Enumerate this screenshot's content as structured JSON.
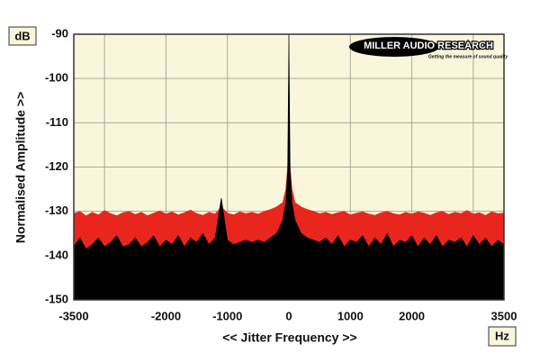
{
  "chart_data": {
    "type": "area",
    "y_unit": "dB",
    "x_unit": "Hz",
    "ylabel": "Normalised Amplitude >>",
    "xlabel": "<< Jitter Frequency >>",
    "logo": "MILLER AUDIO RESEARCH",
    "tagline": "Getting the measure of sound quality",
    "xlim": [
      -3500,
      3500
    ],
    "ylim": [
      -150,
      -90
    ],
    "xticks": [
      -3500,
      -2000,
      -1000,
      0,
      1000,
      2000,
      3500
    ],
    "xgrid_extra": [
      -3000,
      3000
    ],
    "yticks": [
      -150,
      -140,
      -130,
      -120,
      -110,
      -100,
      -90
    ],
    "grid": true,
    "x": [
      -3500,
      -3400,
      -3300,
      -3200,
      -3100,
      -3000,
      -2900,
      -2800,
      -2700,
      -2600,
      -2500,
      -2400,
      -2300,
      -2200,
      -2100,
      -2000,
      -1900,
      -1800,
      -1700,
      -1600,
      -1500,
      -1400,
      -1300,
      -1200,
      -1100,
      -1000,
      -900,
      -800,
      -700,
      -600,
      -500,
      -400,
      -300,
      -200,
      -100,
      -50,
      -20,
      0,
      20,
      50,
      100,
      200,
      300,
      400,
      500,
      600,
      700,
      800,
      900,
      1000,
      1100,
      1200,
      1300,
      1400,
      1500,
      1600,
      1700,
      1800,
      1900,
      2000,
      2100,
      2200,
      2300,
      2400,
      2500,
      2600,
      2700,
      2800,
      2900,
      3000,
      3100,
      3200,
      3300,
      3400,
      3500
    ],
    "series": [
      {
        "color": "#e8261e",
        "values": [
          -130.5,
          -130,
          -131,
          -130.2,
          -130.8,
          -129.8,
          -130.5,
          -131,
          -130.3,
          -130,
          -130.7,
          -130.2,
          -131,
          -130.4,
          -129.9,
          -130.6,
          -130.1,
          -130.8,
          -130.3,
          -129.7,
          -130.5,
          -130.9,
          -130.2,
          -130.6,
          -129,
          -130.4,
          -130.8,
          -130.1,
          -130.5,
          -130.2,
          -130.6,
          -130,
          -129.6,
          -129,
          -128,
          -125,
          -120,
          -113,
          -120,
          -125,
          -128,
          -129,
          -129.6,
          -130,
          -130.5,
          -130.2,
          -130.7,
          -130.3,
          -130,
          -130.8,
          -130.4,
          -130.1,
          -130.6,
          -130.9,
          -130.3,
          -130,
          -130.5,
          -130.8,
          -130.2,
          -130.6,
          -130.1,
          -130.4,
          -130.9,
          -130.3,
          -130,
          -130.7,
          -130.2,
          -130.5,
          -129.8,
          -130.6,
          -130.3,
          -130.9,
          -130.1,
          -130.5,
          -130.4
        ]
      },
      {
        "color": "#000000",
        "values": [
          -138,
          -136,
          -138.5,
          -137.5,
          -136,
          -138,
          -137,
          -135.5,
          -138,
          -137.5,
          -136,
          -138,
          -137,
          -135.5,
          -138,
          -136.5,
          -137.5,
          -135.5,
          -138,
          -136,
          -137,
          -135,
          -137.5,
          -136,
          -127,
          -136.5,
          -137.5,
          -137,
          -136.5,
          -137,
          -136.5,
          -137,
          -136,
          -135,
          -132,
          -128,
          -121,
          -90,
          -121,
          -128,
          -132,
          -135,
          -136,
          -136.5,
          -137,
          -136,
          -137.5,
          -135.5,
          -138,
          -136.5,
          -137,
          -135.5,
          -138,
          -136,
          -137.5,
          -135,
          -138,
          -136.5,
          -137,
          -135.5,
          -138,
          -136,
          -137.5,
          -135.5,
          -138,
          -136.5,
          -137,
          -136,
          -138,
          -135.5,
          -137.5,
          -136,
          -138,
          -136.5,
          -137.5
        ]
      }
    ]
  }
}
